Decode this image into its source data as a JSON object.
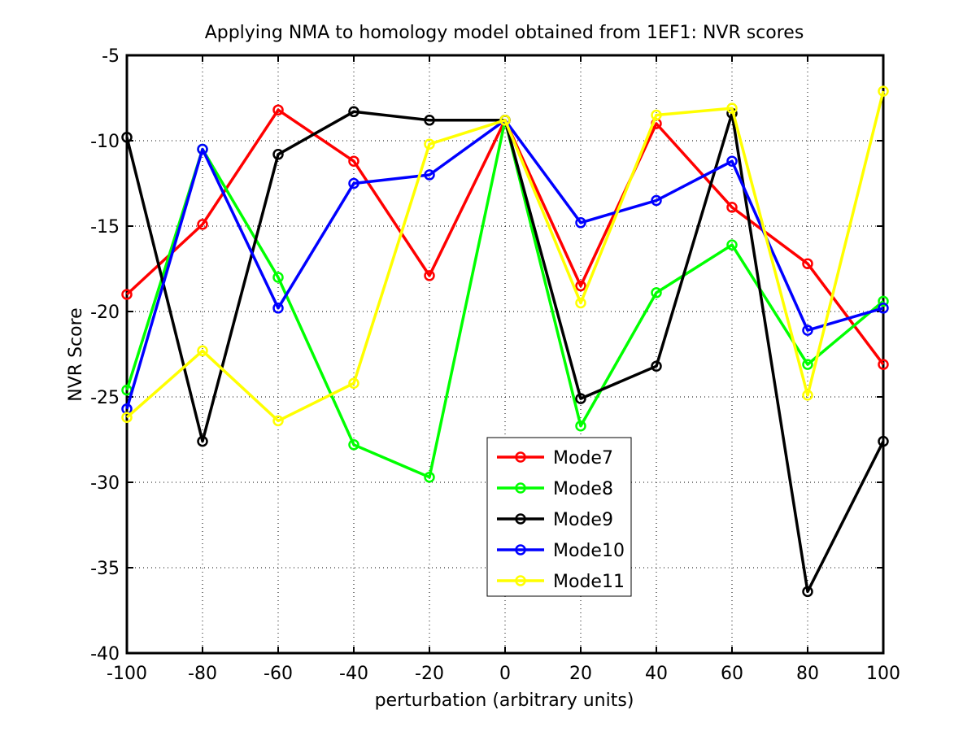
{
  "chart_data": {
    "type": "line",
    "title": "Applying NMA to homology model obtained from 1EF1: NVR scores",
    "xlabel": "perturbation (arbitrary units)",
    "ylabel": "NVR Score",
    "x": [
      -100,
      -80,
      -60,
      -40,
      -20,
      0,
      20,
      40,
      60,
      80,
      100
    ],
    "xlim": [
      -100,
      100
    ],
    "ylim": [
      -40,
      -5
    ],
    "x_ticks": [
      "-100",
      "-80",
      "-60",
      "-40",
      "-20",
      "0",
      "20",
      "40",
      "60",
      "80",
      "100"
    ],
    "y_ticks": [
      "-5",
      "-10",
      "-15",
      "-20",
      "-25",
      "-30",
      "-35",
      "-40"
    ],
    "grid": true,
    "legend_position": "bottom-center",
    "series": [
      {
        "name": "Mode7",
        "color": "#ff0000",
        "values": [
          -19.0,
          -14.9,
          -8.2,
          -11.2,
          -17.9,
          -8.8,
          -18.5,
          -9.0,
          -13.9,
          -17.2,
          -23.1
        ]
      },
      {
        "name": "Mode8",
        "color": "#00ff00",
        "values": [
          -24.6,
          -10.5,
          -18.0,
          -27.8,
          -29.7,
          -8.8,
          -26.7,
          -18.9,
          -16.1,
          -23.1,
          -19.4
        ]
      },
      {
        "name": "Mode9",
        "color": "#000000",
        "values": [
          -9.8,
          -27.6,
          -10.8,
          -8.3,
          -8.8,
          -8.8,
          -25.1,
          -23.2,
          -8.4,
          -36.4,
          -27.6
        ]
      },
      {
        "name": "Mode10",
        "color": "#0000ff",
        "values": [
          -25.7,
          -10.5,
          -19.8,
          -12.5,
          -12.0,
          -8.8,
          -14.8,
          -13.5,
          -11.2,
          -21.1,
          -19.8
        ]
      },
      {
        "name": "Mode11",
        "color": "#ffff00",
        "values": [
          -26.2,
          -22.3,
          -26.4,
          -24.2,
          -10.2,
          -8.8,
          -19.5,
          -8.5,
          -8.1,
          -24.9,
          -7.1
        ]
      }
    ]
  }
}
